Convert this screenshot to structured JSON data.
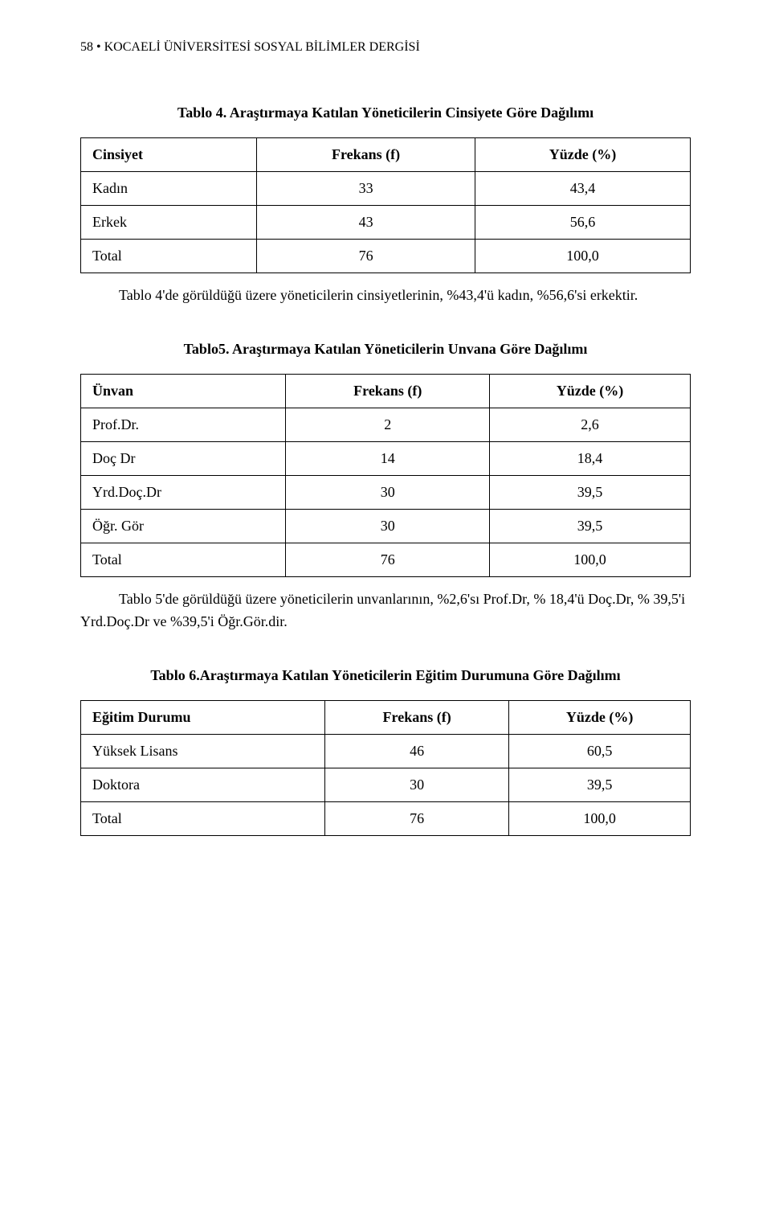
{
  "header": {
    "page_number": "58",
    "bullet": "•",
    "journal_name": "KOCAELİ ÜNİVERSİTESİ SOSYAL BİLİMLER DERGİSİ"
  },
  "table4": {
    "caption": "Tablo 4. Araştırmaya Katılan Yöneticilerin Cinsiyete Göre Dağılımı",
    "columns": {
      "c1": "Cinsiyet",
      "c2": "Frekans (f)",
      "c3": "Yüzde (%)"
    },
    "rows": [
      {
        "label": "Kadın",
        "freq": "33",
        "pct": "43,4"
      },
      {
        "label": "Erkek",
        "freq": "43",
        "pct": "56,6"
      },
      {
        "label": "Total",
        "freq": "76",
        "pct": "100,0"
      }
    ],
    "note": "Tablo 4'de görüldüğü üzere yöneticilerin cinsiyetlerinin, %43,4'ü kadın, %56,6'si erkektir."
  },
  "table5": {
    "caption": "Tablo5. Araştırmaya Katılan Yöneticilerin Unvana Göre Dağılımı",
    "columns": {
      "c1": "Ünvan",
      "c2": "Frekans (f)",
      "c3": "Yüzde (%)"
    },
    "rows": [
      {
        "label": "Prof.Dr.",
        "freq": "2",
        "pct": "2,6"
      },
      {
        "label": "Doç Dr",
        "freq": "14",
        "pct": "18,4"
      },
      {
        "label": "Yrd.Doç.Dr",
        "freq": "30",
        "pct": "39,5"
      },
      {
        "label": "Öğr. Gör",
        "freq": "30",
        "pct": "39,5"
      },
      {
        "label": "Total",
        "freq": "76",
        "pct": "100,0"
      }
    ],
    "note": "Tablo 5'de görüldüğü üzere yöneticilerin unvanlarının, %2,6'sı Prof.Dr, % 18,4'ü Doç.Dr, % 39,5'i Yrd.Doç.Dr ve %39,5'i Öğr.Gör.dir."
  },
  "table6": {
    "caption": "Tablo 6.Araştırmaya Katılan Yöneticilerin Eğitim Durumuna Göre Dağılımı",
    "columns": {
      "c1": "Eğitim Durumu",
      "c2": "Frekans (f)",
      "c3": "Yüzde (%)"
    },
    "rows": [
      {
        "label": "Yüksek Lisans",
        "freq": "46",
        "pct": "60,5"
      },
      {
        "label": "Doktora",
        "freq": "30",
        "pct": "39,5"
      },
      {
        "label": "Total",
        "freq": "76",
        "pct": "100,0"
      }
    ]
  }
}
